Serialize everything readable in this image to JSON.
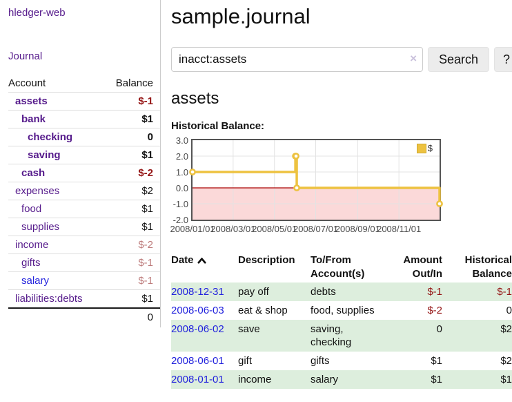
{
  "app": {
    "title": "hledger-web"
  },
  "colors": {
    "link_purple": "#551a8b",
    "link_blue": "#2222dd",
    "negative_strong": "#941414",
    "negative_soft": "#bd7b7b",
    "chart_series_yellow": "#EDC240",
    "negative_region_fill": "#fbd9d9",
    "negative_region_line": "#aa0000",
    "row_stripe_green": "#ddeedd"
  },
  "sidebar": {
    "nav": {
      "journal_label": "Journal"
    },
    "accounts": {
      "headers": [
        "Account",
        "Balance"
      ],
      "rows": [
        {
          "account": "assets",
          "balance": "$-1"
        },
        {
          "account": "bank",
          "balance": "$1"
        },
        {
          "account": "checking",
          "balance": "0"
        },
        {
          "account": "saving",
          "balance": "$1"
        },
        {
          "account": "cash",
          "balance": "$-2"
        },
        {
          "account": "expenses",
          "balance": "$2"
        },
        {
          "account": "food",
          "balance": "$1"
        },
        {
          "account": "supplies",
          "balance": "$1"
        },
        {
          "account": "income",
          "balance": "$-2"
        },
        {
          "account": "gifts",
          "balance": "$-1"
        },
        {
          "account": "salary",
          "balance": "$-1"
        },
        {
          "account": "liabilities:debts",
          "balance": "$1"
        }
      ],
      "total": "0"
    }
  },
  "main": {
    "title": "sample.journal",
    "search": {
      "value": "inacct:assets",
      "clear_icon": "×",
      "search_label": "Search",
      "help_label": "?"
    },
    "account_heading": "assets",
    "chart_label": "Historical Balance:",
    "register": {
      "headers": [
        "Date",
        "Description",
        "To/From Account(s)",
        "Amount Out/In",
        "Historical Balance"
      ],
      "rows": [
        {
          "date": "2008-12-31",
          "description": "pay off",
          "accounts": "debts",
          "amount": "$-1",
          "balance": "$-1"
        },
        {
          "date": "2008-06-03",
          "description": "eat & shop",
          "accounts": "food, supplies",
          "amount": "$-2",
          "balance": "0"
        },
        {
          "date": "2008-06-02",
          "description": "save",
          "accounts": "saving, checking",
          "amount": "0",
          "balance": "$2"
        },
        {
          "date": "2008-06-01",
          "description": "gift",
          "accounts": "gifts",
          "amount": "$1",
          "balance": "$2"
        },
        {
          "date": "2008-01-01",
          "description": "income",
          "accounts": "salary",
          "amount": "$1",
          "balance": "$1"
        }
      ]
    }
  },
  "chart_data": {
    "type": "line",
    "step": true,
    "title": "Historical Balance",
    "x_range": [
      "2008-01-01",
      "2008-12-31"
    ],
    "ylim": [
      -2,
      3
    ],
    "yticks": [
      3.0,
      2.0,
      1.0,
      0.0,
      -1.0,
      -2.0
    ],
    "xticks": [
      "2008/01/01",
      "2008/03/01",
      "2008/05/01",
      "2008/07/01",
      "2008/09/01",
      "2008/11/01"
    ],
    "grid": true,
    "legend_position": "top-right",
    "negative_region": {
      "fill": "#fbd9d9",
      "line": "#aa0000"
    },
    "series": [
      {
        "name": "$",
        "color": "#EDC240",
        "points": [
          [
            "2008-01-01",
            1
          ],
          [
            "2008-06-01",
            2
          ],
          [
            "2008-06-02",
            2
          ],
          [
            "2008-06-03",
            0
          ],
          [
            "2008-12-31",
            -1
          ]
        ]
      }
    ]
  }
}
